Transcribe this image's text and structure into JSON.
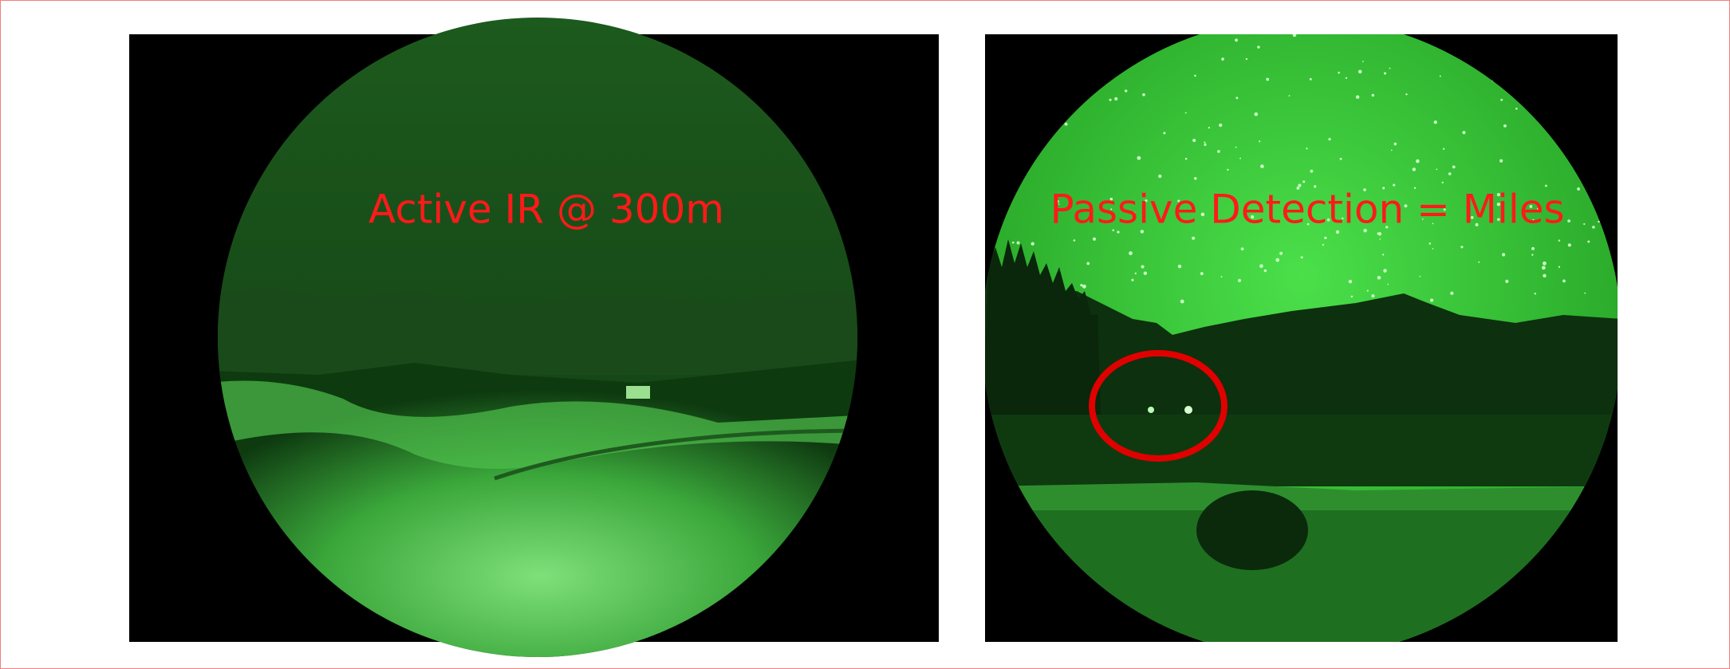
{
  "panels": [
    {
      "caption": "Active IR @ 300m"
    },
    {
      "caption": "Passive Detection = Miles"
    }
  ]
}
